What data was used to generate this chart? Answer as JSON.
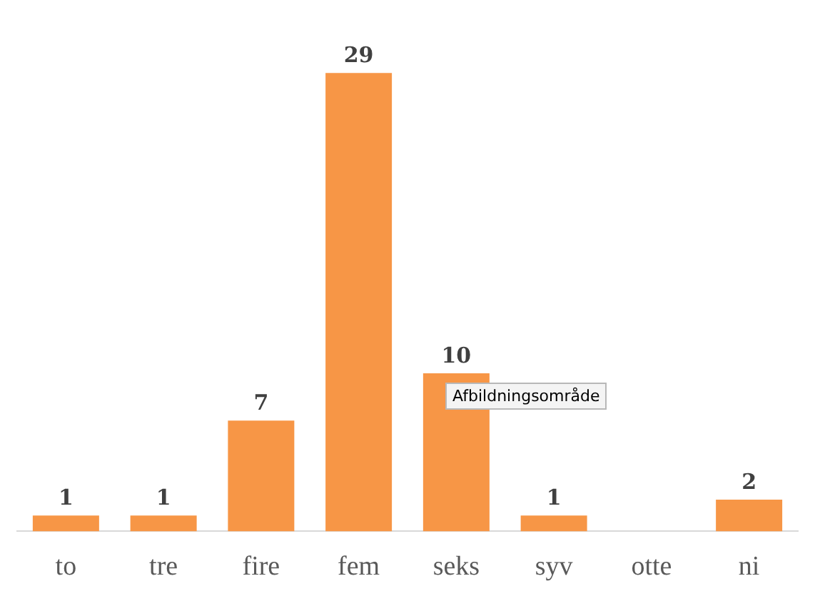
{
  "chart_data": {
    "type": "bar",
    "categories": [
      "to",
      "tre",
      "fire",
      "fem",
      "seks",
      "syv",
      "otte",
      "ni"
    ],
    "values": [
      1,
      1,
      7,
      29,
      10,
      1,
      null,
      2
    ],
    "color": "#f79646",
    "value_labels": [
      "1",
      "1",
      "7",
      "29",
      "10",
      "1",
      null,
      "2"
    ],
    "legend": false,
    "annotations": [
      "Afbildningsområde"
    ]
  }
}
